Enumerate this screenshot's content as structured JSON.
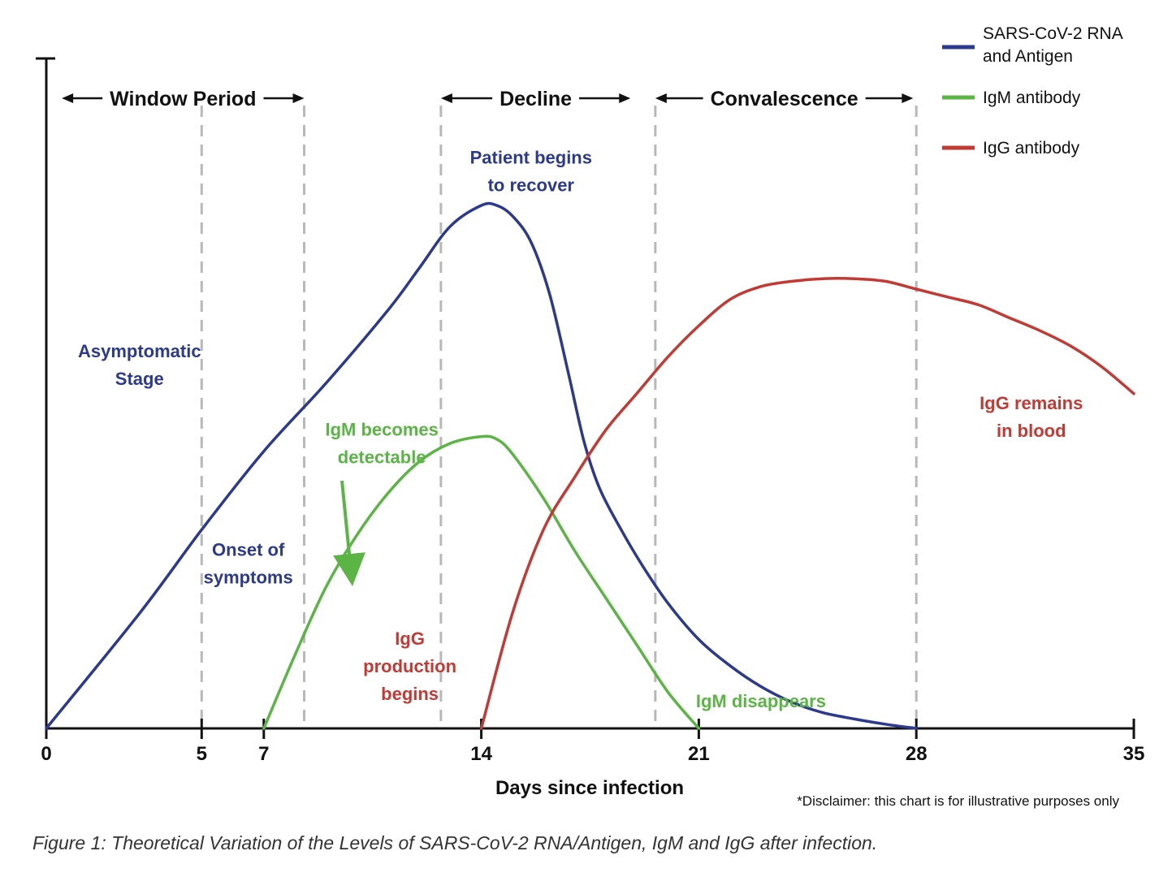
{
  "chart_data": {
    "type": "line",
    "x_ticks": [
      0,
      5,
      7,
      14,
      21,
      28,
      35
    ],
    "xlim": [
      0,
      35
    ],
    "ylim": [
      0,
      100
    ],
    "xlabel": "Days since infection",
    "series": [
      {
        "name_lines": [
          "SARS-CoV-2 RNA",
          "and Antigen"
        ],
        "color": "#2b3a8c",
        "points": [
          [
            0,
            0
          ],
          [
            3,
            22
          ],
          [
            5,
            38
          ],
          [
            7,
            53
          ],
          [
            9,
            66
          ],
          [
            11,
            80
          ],
          [
            12,
            88
          ],
          [
            13,
            96
          ],
          [
            14,
            100
          ],
          [
            14.5,
            100
          ],
          [
            15,
            98
          ],
          [
            15.6,
            93
          ],
          [
            16.2,
            83
          ],
          [
            16.8,
            68
          ],
          [
            17.3,
            55
          ],
          [
            17.8,
            46
          ],
          [
            18.5,
            38
          ],
          [
            19.2,
            31
          ],
          [
            20,
            24
          ],
          [
            21,
            17
          ],
          [
            22,
            12
          ],
          [
            23,
            8
          ],
          [
            24,
            5
          ],
          [
            25,
            3
          ],
          [
            26,
            1.8
          ],
          [
            27,
            0.8
          ],
          [
            28,
            0
          ]
        ]
      },
      {
        "name_lines": [
          "IgM antibody"
        ],
        "color": "#5ab544",
        "points": [
          [
            7,
            0
          ],
          [
            8,
            14
          ],
          [
            9,
            27
          ],
          [
            10,
            37
          ],
          [
            11,
            45
          ],
          [
            12,
            51
          ],
          [
            13,
            54.5
          ],
          [
            14,
            55.8
          ],
          [
            14.5,
            55.3
          ],
          [
            15,
            52.5
          ],
          [
            16,
            44
          ],
          [
            17,
            34
          ],
          [
            18,
            25
          ],
          [
            19,
            16
          ],
          [
            20,
            7
          ],
          [
            21,
            0
          ]
        ]
      },
      {
        "name_lines": [
          "IgG antibody"
        ],
        "color": "#c23a33",
        "points": [
          [
            14,
            0
          ],
          [
            15,
            22
          ],
          [
            16,
            38
          ],
          [
            17,
            48
          ],
          [
            18,
            57
          ],
          [
            19,
            64
          ],
          [
            20,
            71
          ],
          [
            21,
            77
          ],
          [
            22,
            82
          ],
          [
            23,
            84.5
          ],
          [
            24,
            85.5
          ],
          [
            25,
            86
          ],
          [
            26,
            86
          ],
          [
            27,
            85.5
          ],
          [
            28,
            84
          ],
          [
            29,
            82.5
          ],
          [
            30,
            81
          ],
          [
            31,
            78.5
          ],
          [
            32,
            76
          ],
          [
            33,
            73
          ],
          [
            34,
            69
          ],
          [
            35,
            64
          ]
        ]
      }
    ],
    "dashed_lines_x": [
      5,
      8.3,
      12.7,
      19.6,
      28
    ],
    "periods": [
      {
        "label": "Window Period",
        "from": 0.5,
        "to": 8.3
      },
      {
        "label": "Decline",
        "from": 12.7,
        "to": 18.8
      },
      {
        "label": "Convalescence",
        "from": 19.6,
        "to": 27.9
      }
    ],
    "annotations": [
      {
        "lines": [
          "Asymptomatic",
          "Stage"
        ],
        "color": "#2b3a8c",
        "x": 3,
        "y": 71
      },
      {
        "lines": [
          "Onset of",
          "symptoms"
        ],
        "color": "#2b3a8c",
        "x": 6.5,
        "y": 33
      },
      {
        "lines": [
          "Patient begins",
          "to recover"
        ],
        "color": "#2b3a8c",
        "x": 15.6,
        "y": 108
      },
      {
        "lines": [
          "IgM becomes",
          "detectable"
        ],
        "color": "#5ab544",
        "x": 10.8,
        "y": 56
      },
      {
        "lines": [
          "IgG",
          "production",
          "begins"
        ],
        "color": "#c23a33",
        "x": 11.7,
        "y": 16
      },
      {
        "lines": [
          "IgM disappears"
        ],
        "color": "#5ab544",
        "x": 23,
        "y": 4
      },
      {
        "lines": [
          "IgG remains",
          "in blood"
        ],
        "color": "#c23a33",
        "x": 31.7,
        "y": 61
      }
    ],
    "disclaimer": "*Disclaimer: this chart is for illustrative purposes only",
    "caption": "Figure 1: Theoretical Variation of the Levels of SARS-CoV-2 RNA/Antigen, IgM and IgG after infection.",
    "grid": false,
    "legend_position": "top-right"
  }
}
